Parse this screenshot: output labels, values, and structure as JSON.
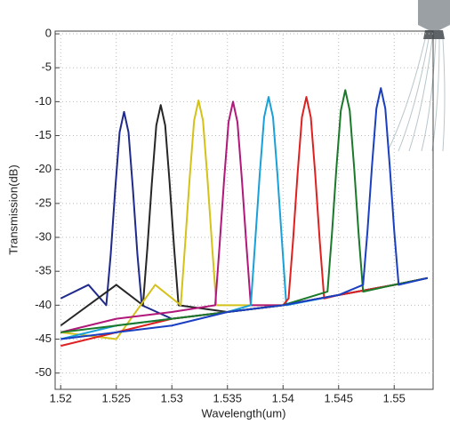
{
  "chart_data": {
    "type": "line",
    "xlabel": "Wavelength(um)",
    "ylabel": "Transmission(dB)",
    "xlim": [
      1.5195,
      1.5535
    ],
    "ylim": [
      -52.4,
      0.4
    ],
    "xticks": [
      1.52,
      1.525,
      1.53,
      1.535,
      1.54,
      1.545,
      1.55
    ],
    "yticks": [
      0,
      -5,
      -10,
      -15,
      -20,
      -25,
      -30,
      -35,
      -40,
      -45,
      -50
    ],
    "grid": true,
    "series": [
      {
        "color": "#1f2a8a",
        "x": [
          1.52,
          1.5225,
          1.5241,
          1.5245,
          1.5249,
          1.5253,
          1.5257,
          1.5261,
          1.5265,
          1.5269,
          1.5273,
          1.53,
          1.535,
          1.54,
          1.545,
          1.55,
          1.553
        ],
        "values": [
          -39,
          -37,
          -40,
          -32.5,
          -23,
          -14.5,
          -11.5,
          -14.5,
          -23,
          -32.5,
          -40,
          -42,
          -41,
          -40,
          -38.5,
          -37,
          -36
        ]
      },
      {
        "color": "#262626",
        "x": [
          1.52,
          1.525,
          1.5274,
          1.5278,
          1.5282,
          1.5286,
          1.529,
          1.5294,
          1.5298,
          1.5302,
          1.5306,
          1.535,
          1.54,
          1.545,
          1.55,
          1.553
        ],
        "values": [
          -43,
          -37,
          -40,
          -31.5,
          -22,
          -13.5,
          -10.5,
          -13.5,
          -22,
          -31.5,
          -40,
          -41,
          -40,
          -38.5,
          -37,
          -36
        ]
      },
      {
        "color": "#d4c21a",
        "x": [
          1.52,
          1.525,
          1.5285,
          1.5308,
          1.5312,
          1.5316,
          1.532,
          1.5324,
          1.5328,
          1.5332,
          1.5336,
          1.534,
          1.54,
          1.545,
          1.55,
          1.553
        ],
        "values": [
          -44,
          -45,
          -37,
          -40,
          -30.8,
          -21.3,
          -12.8,
          -9.8,
          -12.8,
          -21.3,
          -30.8,
          -40,
          -40,
          -38.5,
          -37,
          -36
        ]
      },
      {
        "color": "#b0187a",
        "x": [
          1.52,
          1.525,
          1.53,
          1.5339,
          1.5343,
          1.5347,
          1.5351,
          1.5355,
          1.5359,
          1.5363,
          1.5367,
          1.5371,
          1.54,
          1.545,
          1.55,
          1.553
        ],
        "values": [
          -44,
          -42,
          -41,
          -40,
          -31,
          -21.5,
          -13,
          -10,
          -13,
          -21.5,
          -31,
          -40,
          -40,
          -38.5,
          -37,
          -36
        ]
      },
      {
        "color": "#1aa0d8",
        "x": [
          1.52,
          1.525,
          1.53,
          1.535,
          1.5371,
          1.5375,
          1.5379,
          1.5383,
          1.5387,
          1.5391,
          1.5395,
          1.5399,
          1.5403,
          1.545,
          1.55,
          1.553
        ],
        "values": [
          -45,
          -43,
          -42,
          -41,
          -40,
          -30.5,
          -20.8,
          -12.3,
          -9.3,
          -12.3,
          -20.8,
          -30.5,
          -40,
          -38.5,
          -37,
          -36
        ]
      },
      {
        "color": "#e02020",
        "x": [
          1.52,
          1.525,
          1.53,
          1.535,
          1.54,
          1.5405,
          1.5409,
          1.5413,
          1.5417,
          1.5421,
          1.5425,
          1.5429,
          1.5433,
          1.5437,
          1.545,
          1.55,
          1.553
        ],
        "values": [
          -46,
          -44,
          -42,
          -41,
          -40,
          -39,
          -30.5,
          -20.8,
          -12.3,
          -9.3,
          -12.3,
          -20.8,
          -30.5,
          -39,
          -38.5,
          -37,
          -36
        ]
      },
      {
        "color": "#1a7a2a",
        "x": [
          1.52,
          1.525,
          1.53,
          1.535,
          1.54,
          1.544,
          1.5444,
          1.5448,
          1.5452,
          1.5456,
          1.546,
          1.5464,
          1.5468,
          1.5472,
          1.55,
          1.553
        ],
        "values": [
          -44,
          -43,
          -42,
          -41,
          -40,
          -38,
          -29.5,
          -19.8,
          -11.3,
          -8.3,
          -11.3,
          -19.8,
          -29.5,
          -38,
          -37,
          -36
        ]
      },
      {
        "color": "#1a3fc0",
        "x": [
          1.52,
          1.525,
          1.53,
          1.535,
          1.54,
          1.545,
          1.5472,
          1.5476,
          1.548,
          1.5484,
          1.5488,
          1.5492,
          1.5496,
          1.55,
          1.5504,
          1.553
        ],
        "values": [
          -45,
          -44,
          -43,
          -41,
          -40,
          -38.5,
          -37,
          -29,
          -19.5,
          -11,
          -8,
          -11,
          -19.5,
          -29,
          -37,
          -36
        ]
      }
    ]
  }
}
